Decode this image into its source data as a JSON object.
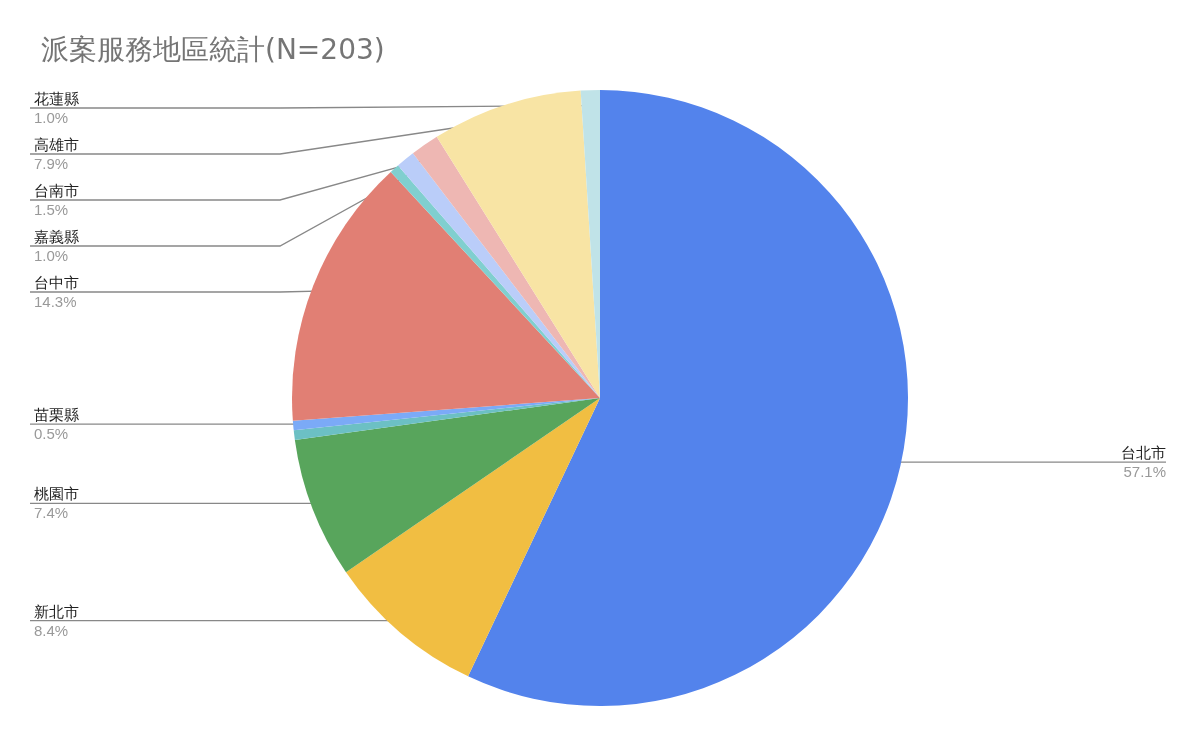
{
  "chart_data": {
    "type": "pie",
    "title": "派案服務地區統計(N=203)",
    "categories": [
      "台北市",
      "新北市",
      "桃園市",
      null,
      "苗栗縣",
      "台中市",
      null,
      "嘉義縣",
      "台南市",
      "高雄市",
      "花蓮縣"
    ],
    "values": [
      57.1,
      8.4,
      7.4,
      0.5,
      0.5,
      14.3,
      0.5,
      1.0,
      1.5,
      7.9,
      1.0
    ],
    "value_labels": [
      "57.1%",
      "8.4%",
      "7.4%",
      null,
      "0.5%",
      "14.3%",
      null,
      "1.0%",
      "1.5%",
      "7.9%",
      "1.0%"
    ],
    "colors": [
      "#5383ec",
      "#f1be42",
      "#58a55c",
      "#6cc0c4",
      "#7baaf7",
      "#e17f74",
      "#80cfcf",
      "#bacdf9",
      "#eeb7b3",
      "#f8e4a4",
      "#c0e3e8"
    ],
    "legend": false
  }
}
